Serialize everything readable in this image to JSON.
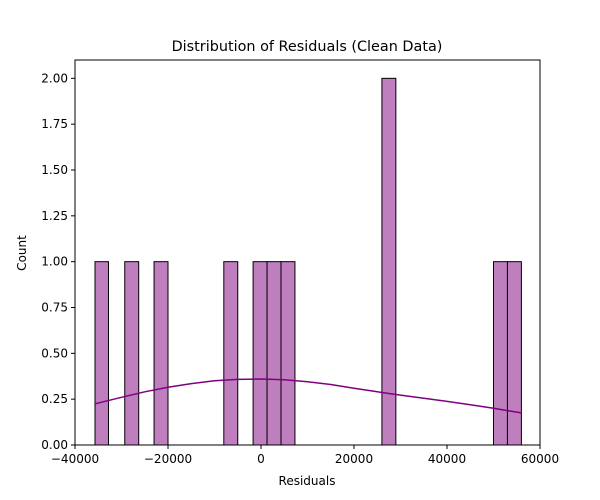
{
  "chart_data": {
    "type": "bar",
    "title": "Distribution of Residuals (Clean Data)",
    "xlabel": "Residuals",
    "ylabel": "Count",
    "xlim": [
      -40000,
      60000
    ],
    "ylim": [
      0,
      2.1
    ],
    "xticks": [
      -40000,
      -20000,
      0,
      20000,
      40000,
      60000
    ],
    "xtick_labels": [
      "−40000",
      "−20000",
      "0",
      "20000",
      "40000",
      "60000"
    ],
    "yticks": [
      0.0,
      0.25,
      0.5,
      0.75,
      1.0,
      1.25,
      1.5,
      1.75,
      2.0
    ],
    "ytick_labels": [
      "0.00",
      "0.25",
      "0.50",
      "0.75",
      "1.00",
      "1.25",
      "1.50",
      "1.75",
      "2.00"
    ],
    "bins": [
      {
        "x0": -35700,
        "x1": -32800,
        "count": 1
      },
      {
        "x0": -29300,
        "x1": -26300,
        "count": 1
      },
      {
        "x0": -23000,
        "x1": -20000,
        "count": 1
      },
      {
        "x0": -8000,
        "x1": -5000,
        "count": 1
      },
      {
        "x0": -1700,
        "x1": 1300,
        "count": 1
      },
      {
        "x0": 1300,
        "x1": 4300,
        "count": 1
      },
      {
        "x0": 4300,
        "x1": 7300,
        "count": 1
      },
      {
        "x0": 26000,
        "x1": 29000,
        "count": 2
      },
      {
        "x0": 50000,
        "x1": 53000,
        "count": 1
      },
      {
        "x0": 53000,
        "x1": 56000,
        "count": 1
      }
    ],
    "kde": {
      "x": [
        -35700,
        -30000,
        -25000,
        -20000,
        -15000,
        -10000,
        -5000,
        0,
        5000,
        10000,
        15000,
        20000,
        25000,
        30000,
        35000,
        40000,
        45000,
        50000,
        56000
      ],
      "y": [
        0.225,
        0.26,
        0.29,
        0.315,
        0.335,
        0.35,
        0.358,
        0.36,
        0.356,
        0.345,
        0.33,
        0.31,
        0.29,
        0.272,
        0.255,
        0.238,
        0.22,
        0.2,
        0.175
      ]
    },
    "grid": false,
    "bar_color": "#bf7fbf",
    "bar_edge_color": "#000000",
    "kde_color": "#800080"
  }
}
